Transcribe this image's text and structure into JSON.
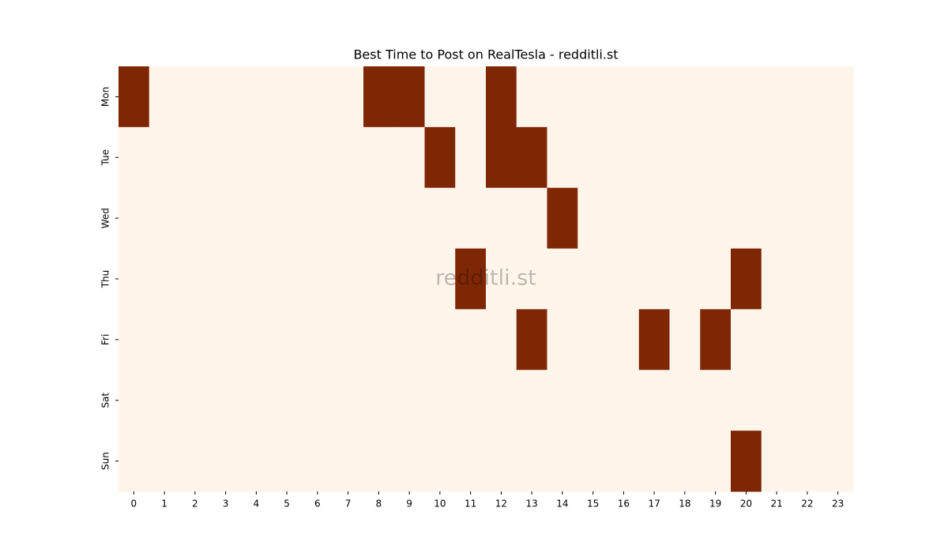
{
  "chart_data": {
    "type": "heatmap",
    "title": "Best Time to Post on RealTesla - redditli.st",
    "watermark": "redditli.st",
    "x": [
      0,
      1,
      2,
      3,
      4,
      5,
      6,
      7,
      8,
      9,
      10,
      11,
      12,
      13,
      14,
      15,
      16,
      17,
      18,
      19,
      20,
      21,
      22,
      23
    ],
    "categories": [
      "Mon",
      "Tue",
      "Wed",
      "Thu",
      "Fri",
      "Sat",
      "Sun"
    ],
    "values": [
      [
        1,
        0,
        0,
        0,
        0,
        0,
        0,
        0,
        1,
        1,
        0,
        0,
        1,
        0,
        0,
        0,
        0,
        0,
        0,
        0,
        0,
        0,
        0,
        0
      ],
      [
        0,
        0,
        0,
        0,
        0,
        0,
        0,
        0,
        0,
        0,
        1,
        0,
        1,
        1,
        0,
        0,
        0,
        0,
        0,
        0,
        0,
        0,
        0,
        0
      ],
      [
        0,
        0,
        0,
        0,
        0,
        0,
        0,
        0,
        0,
        0,
        0,
        0,
        0,
        0,
        1,
        0,
        0,
        0,
        0,
        0,
        0,
        0,
        0,
        0
      ],
      [
        0,
        0,
        0,
        0,
        0,
        0,
        0,
        0,
        0,
        0,
        0,
        1,
        0,
        0,
        0,
        0,
        0,
        0,
        0,
        0,
        1,
        0,
        0,
        0
      ],
      [
        0,
        0,
        0,
        0,
        0,
        0,
        0,
        0,
        0,
        0,
        0,
        0,
        0,
        1,
        0,
        0,
        0,
        1,
        0,
        1,
        0,
        0,
        0,
        0
      ],
      [
        0,
        0,
        0,
        0,
        0,
        0,
        0,
        0,
        0,
        0,
        0,
        0,
        0,
        0,
        0,
        0,
        0,
        0,
        0,
        0,
        0,
        0,
        0,
        0
      ],
      [
        0,
        0,
        0,
        0,
        0,
        0,
        0,
        0,
        0,
        0,
        0,
        0,
        0,
        0,
        0,
        0,
        0,
        0,
        0,
        0,
        1,
        0,
        0,
        0
      ]
    ],
    "colors": {
      "low": "#fff5eb",
      "high": "#7f2704"
    }
  }
}
